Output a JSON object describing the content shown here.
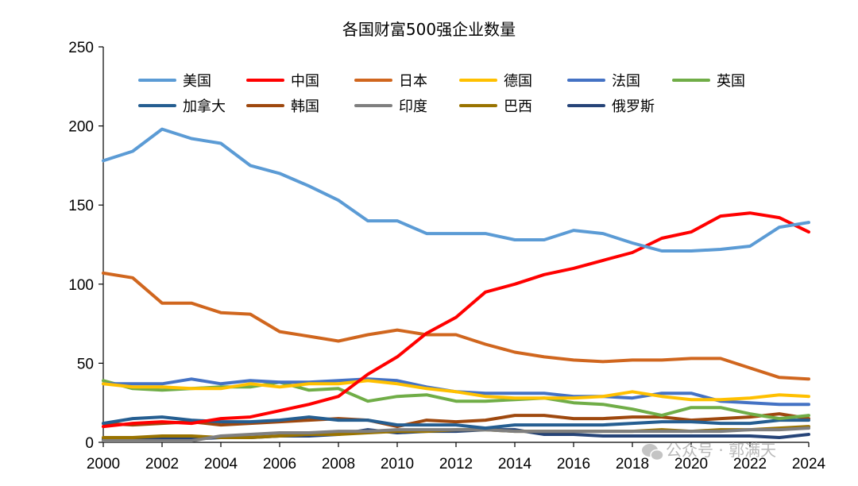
{
  "chart_data": {
    "type": "line",
    "title": "各国财富500强企业数量",
    "xlabel": "",
    "ylabel": "",
    "ylim": [
      0,
      250
    ],
    "yticks": [
      0,
      50,
      100,
      150,
      200,
      250
    ],
    "xlim": [
      2000,
      2024
    ],
    "xticks": [
      2000,
      2002,
      2004,
      2006,
      2008,
      2010,
      2012,
      2014,
      2016,
      2018,
      2020,
      2022,
      2024
    ],
    "x": [
      2000,
      2001,
      2002,
      2003,
      2004,
      2005,
      2006,
      2007,
      2008,
      2009,
      2010,
      2011,
      2012,
      2013,
      2014,
      2015,
      2016,
      2017,
      2018,
      2019,
      2020,
      2021,
      2022,
      2023,
      2024
    ],
    "grid": false,
    "legend_position": "top",
    "series": [
      {
        "name": "美国",
        "color": "#5b9bd5",
        "values": [
          178,
          184,
          198,
          192,
          189,
          175,
          170,
          162,
          153,
          140,
          140,
          132,
          132,
          132,
          128,
          128,
          134,
          132,
          126,
          121,
          121,
          122,
          124,
          136,
          139
        ]
      },
      {
        "name": "中国",
        "color": "#ff0000",
        "values": [
          10,
          12,
          13,
          12,
          15,
          16,
          20,
          24,
          29,
          43,
          54,
          69,
          79,
          95,
          100,
          106,
          110,
          115,
          120,
          129,
          133,
          143,
          145,
          142,
          133
        ]
      },
      {
        "name": "日本",
        "color": "#d0661e",
        "values": [
          107,
          104,
          88,
          88,
          82,
          81,
          70,
          67,
          64,
          68,
          71,
          68,
          68,
          62,
          57,
          54,
          52,
          51,
          52,
          52,
          53,
          53,
          47,
          41,
          40
        ]
      },
      {
        "name": "德国",
        "color": "#ffc000",
        "values": [
          37,
          35,
          35,
          34,
          34,
          37,
          35,
          37,
          37,
          39,
          37,
          34,
          32,
          29,
          28,
          28,
          28,
          29,
          32,
          29,
          27,
          27,
          28,
          30,
          29
        ]
      },
      {
        "name": "法国",
        "color": "#4472c4",
        "values": [
          37,
          37,
          37,
          40,
          37,
          39,
          38,
          38,
          39,
          40,
          39,
          35,
          32,
          31,
          31,
          31,
          29,
          29,
          28,
          31,
          31,
          26,
          25,
          24,
          24
        ]
      },
      {
        "name": "英国",
        "color": "#70ad47",
        "values": [
          39,
          34,
          33,
          34,
          35,
          35,
          38,
          33,
          34,
          26,
          29,
          30,
          26,
          26,
          27,
          28,
          25,
          24,
          21,
          17,
          22,
          22,
          18,
          15,
          17
        ]
      },
      {
        "name": "加拿大",
        "color": "#255e91",
        "values": [
          12,
          15,
          16,
          14,
          13,
          13,
          14,
          16,
          14,
          14,
          11,
          11,
          11,
          9,
          11,
          11,
          11,
          11,
          12,
          13,
          13,
          12,
          12,
          14,
          14
        ]
      },
      {
        "name": "韩国",
        "color": "#9e480e",
        "values": [
          12,
          11,
          12,
          13,
          11,
          12,
          13,
          14,
          15,
          14,
          10,
          14,
          13,
          14,
          17,
          17,
          15,
          15,
          16,
          16,
          14,
          15,
          16,
          18,
          15
        ]
      },
      {
        "name": "印度",
        "color": "#7f7f7f",
        "values": [
          1,
          1,
          1,
          1,
          4,
          5,
          6,
          6,
          7,
          7,
          8,
          8,
          8,
          8,
          7,
          7,
          7,
          7,
          7,
          7,
          7,
          7,
          8,
          8,
          9
        ]
      },
      {
        "name": "巴西",
        "color": "#997300",
        "values": [
          3,
          3,
          4,
          4,
          3,
          3,
          4,
          5,
          5,
          6,
          7,
          7,
          8,
          8,
          7,
          7,
          7,
          7,
          7,
          8,
          7,
          8,
          8,
          9,
          10
        ]
      },
      {
        "name": "俄罗斯",
        "color": "#264478",
        "values": [
          2,
          2,
          2,
          2,
          3,
          3,
          4,
          4,
          5,
          8,
          6,
          7,
          7,
          8,
          8,
          5,
          5,
          4,
          4,
          4,
          4,
          4,
          4,
          3,
          5
        ]
      }
    ]
  },
  "watermark": {
    "icon": "wechat-icon",
    "text": "公众号 · 郭满天"
  }
}
